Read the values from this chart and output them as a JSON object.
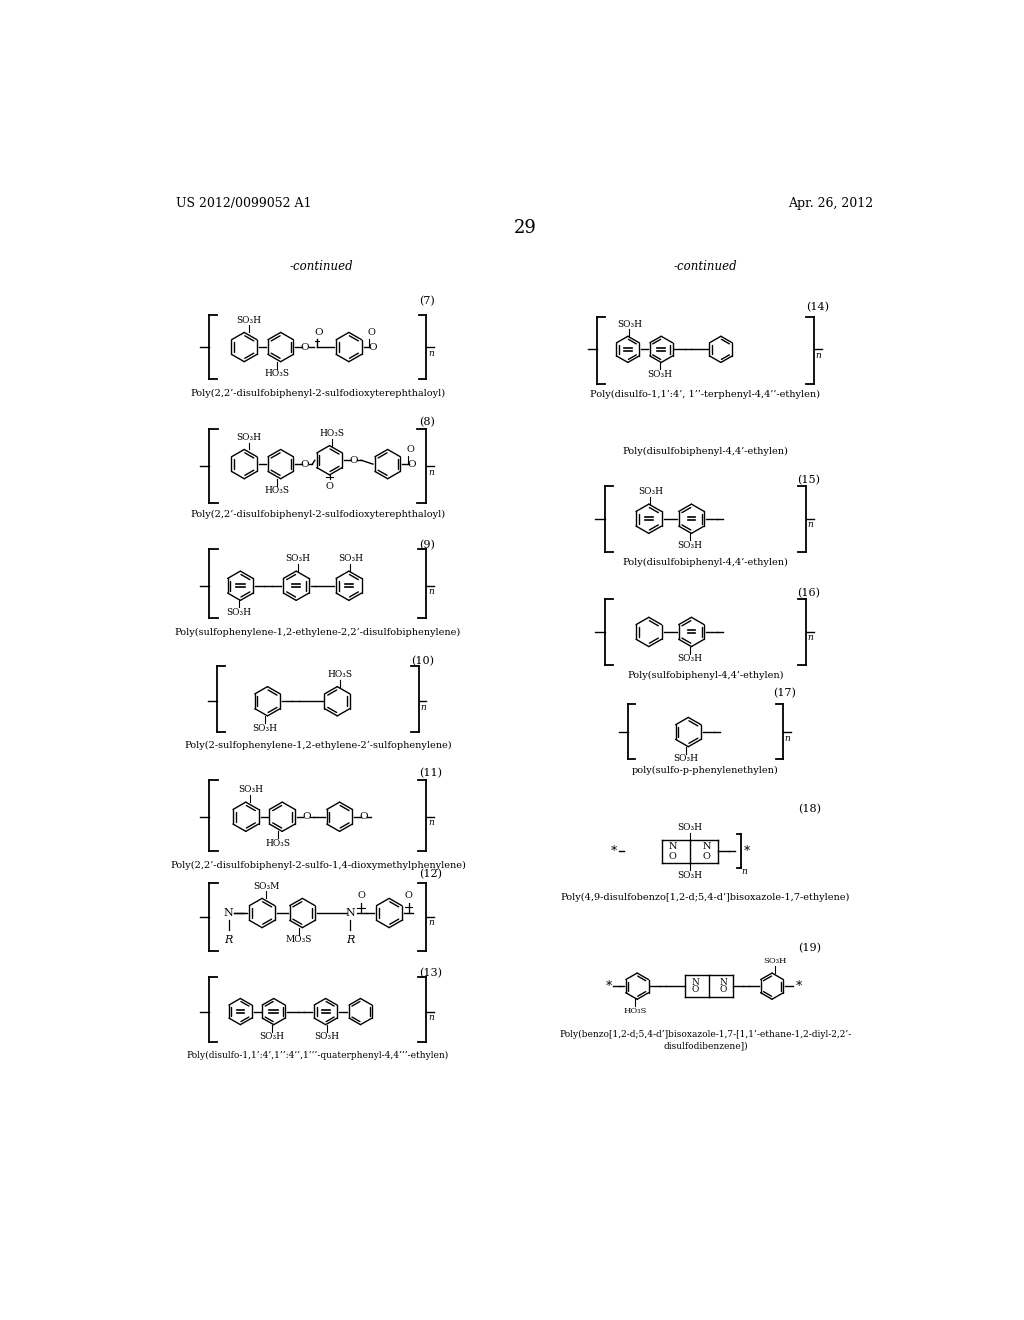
{
  "page_header_left": "US 2012/0099052 A1",
  "page_header_right": "Apr. 26, 2012",
  "page_number": "29",
  "continued_left": "-continued",
  "continued_right": "-continued",
  "background_color": "#ffffff",
  "captions": {
    "7": "Poly(2,2’-disulfobiphenyl-2-sulfodioxyterephthaloyl)",
    "8": "Poly(2,2’-disulfobiphenyl-2-sulfodioxyterephthaloyl)",
    "9": "Poly(sulfophenylene-1,2-ethylene-2,2’-disulfobiphenylene)",
    "10": "Poly(2-sulfophenylene-1,2-ethylene-2’-sulfophenylene)",
    "11": "Poly(2,2’-disulfobiphenyl-2-sulfo-1,4-dioxymethylphenylene)",
    "13": "Poly(disulfo-1,1’:4’,1’’:4’’,1’’’-quaterphenyl-4,4’’’-ethylen)",
    "14": "Poly(disulfo-1,1’:4’, 1’’-terphenyl-4,4’’-ethylen)",
    "15": "Poly(disulfobiphenyl-4,4’-ethylen)",
    "16": "Poly(sulfobiphenyl-4,4’-ethylen)",
    "17": "poly(sulfo-p-phenylenethylen)",
    "18": "Poly(4,9-disulfobenzo[1,2-d;5,4-d’]bisoxazole-1,7-ethylene)",
    "19a": "Poly(benzo[1,2-d;5,4-d’]bisoxazole-1,7-[1,1’-ethane-1,2-diyl-2,2’-",
    "19b": "disulfodibenzene])"
  }
}
